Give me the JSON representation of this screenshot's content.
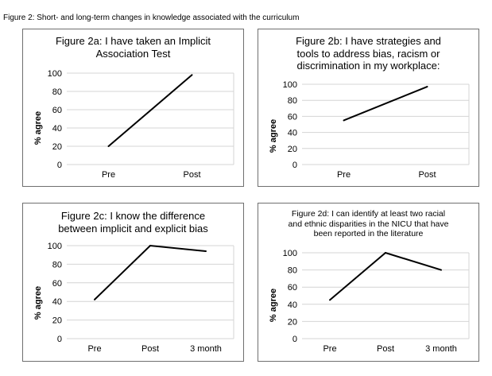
{
  "figure_title": "Figure 2: Short- and long-term changes in knowledge associated with the curriculum",
  "chart_data": [
    {
      "type": "line",
      "title_lines": [
        "Figure 2a: I have taken an Implicit",
        "Association Test"
      ],
      "ylabel": "% agree",
      "categories": [
        "Pre",
        "Post"
      ],
      "values": [
        20,
        98
      ],
      "ylim": [
        0,
        100
      ],
      "yticks": [
        0,
        20,
        40,
        60,
        80,
        100
      ],
      "grid": true
    },
    {
      "type": "line",
      "title_lines": [
        "Figure 2b: I have strategies and",
        "tools to address bias, racism or",
        "discrimination in my workplace:"
      ],
      "ylabel": "% agree",
      "categories": [
        "Pre",
        "Post"
      ],
      "values": [
        55,
        97
      ],
      "ylim": [
        0,
        100
      ],
      "yticks": [
        0,
        20,
        40,
        60,
        80,
        100
      ],
      "grid": true
    },
    {
      "type": "line",
      "title_lines": [
        "Figure 2c: I know the difference",
        "between implicit and explicit bias"
      ],
      "ylabel": "% agree",
      "categories": [
        "Pre",
        "Post",
        "3 month"
      ],
      "values": [
        42,
        100,
        94
      ],
      "ylim": [
        0,
        100
      ],
      "yticks": [
        0,
        20,
        40,
        60,
        80,
        100
      ],
      "grid": true
    },
    {
      "type": "line",
      "title_lines": [
        "Figure 2d: I can identify at least two racial",
        "and ethnic disparities in the NICU that have",
        "been reported in the literature"
      ],
      "ylabel": "% agree",
      "categories": [
        "Pre",
        "Post",
        "3 month"
      ],
      "values": [
        45,
        100,
        80
      ],
      "ylim": [
        0,
        100
      ],
      "yticks": [
        0,
        20,
        40,
        60,
        80,
        100
      ],
      "grid": true
    }
  ]
}
